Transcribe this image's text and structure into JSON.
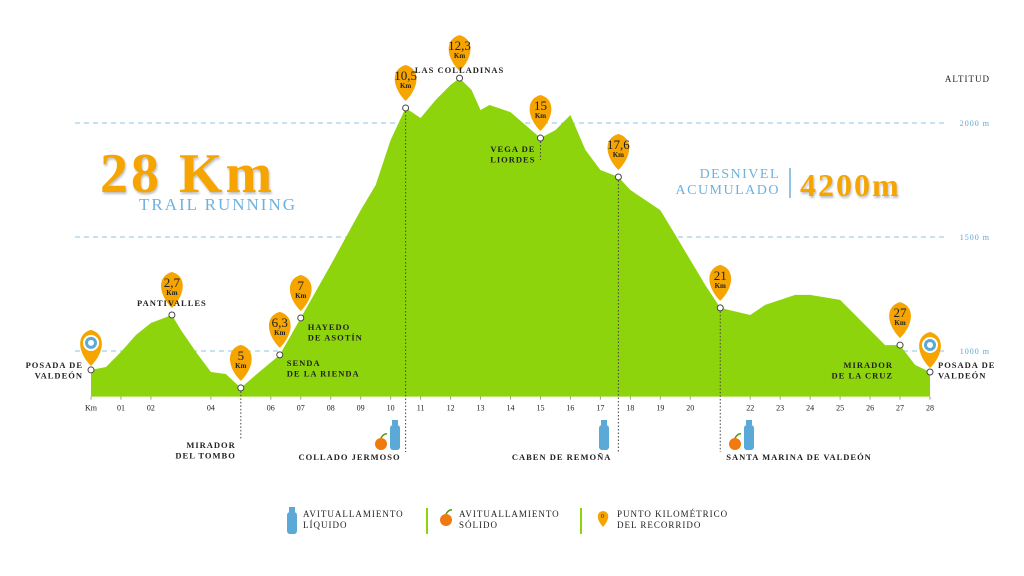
{
  "chart_data": {
    "type": "area",
    "title": "28 Km",
    "subtitle": "TRAIL RUNNING",
    "gain_label": [
      "DESNIVEL",
      "ACUMULADO"
    ],
    "gain_value": "4200m",
    "y_axis_label": "ALTITUD",
    "color": "#8ed40c",
    "x": [
      0,
      0.5,
      1,
      1.5,
      2,
      2.7,
      3,
      3.5,
      4,
      4.5,
      5,
      5.5,
      6.3,
      7,
      8,
      9,
      9.5,
      10,
      10.5,
      11,
      11.5,
      12,
      12.3,
      12.7,
      13,
      13.3,
      14,
      14.5,
      15,
      15.5,
      16,
      16.5,
      17,
      17.6,
      18,
      19,
      19.5,
      20,
      20.5,
      21,
      22,
      22.5,
      23,
      23.5,
      24,
      25,
      26,
      26.5,
      27,
      27.5,
      28
    ],
    "values": [
      917,
      930,
      996,
      1070,
      1123,
      1158,
      1092,
      996,
      908,
      899,
      838,
      895,
      983,
      1145,
      1377,
      1618,
      1728,
      1925,
      2066,
      2022,
      2101,
      2167,
      2197,
      2145,
      2057,
      2079,
      2048,
      1991,
      1934,
      1969,
      2035,
      1882,
      1794,
      1763,
      1706,
      1618,
      1509,
      1399,
      1289,
      1189,
      1158,
      1202,
      1224,
      1246,
      1246,
      1224,
      1092,
      1026,
      1026,
      939,
      908
    ],
    "xlim": [
      0,
      28
    ],
    "ylim": [
      800,
      2450
    ],
    "xticks": [
      {
        "value": 0,
        "label": "Km"
      },
      {
        "value": 1,
        "label": "01"
      },
      {
        "value": 2,
        "label": "02"
      },
      {
        "value": 4,
        "label": "04"
      },
      {
        "value": 6,
        "label": "06"
      },
      {
        "value": 7,
        "label": "07"
      },
      {
        "value": 8,
        "label": "08"
      },
      {
        "value": 9,
        "label": "09"
      },
      10,
      11,
      12,
      13,
      14,
      15,
      16,
      17,
      18,
      19,
      20,
      22,
      23,
      24,
      25,
      26,
      27,
      28
    ],
    "yticks": [
      {
        "value": 1000,
        "label": "1000 m"
      },
      {
        "value": 1500,
        "label": "1500 m"
      },
      {
        "value": 2000,
        "label": "2000 m"
      }
    ],
    "grid": true,
    "pin_unit": "Km",
    "waypoints": [
      {
        "km": 0,
        "alt": 917,
        "name": [
          "POSADA DE",
          "VALDEÓN"
        ]
      },
      {
        "km": 2.7,
        "alt": 1158,
        "label": "2,7",
        "name": [
          "PANTIVALLES"
        ]
      },
      {
        "km": 5,
        "alt": 838,
        "label": "5",
        "name": [
          "MIRADOR",
          "DEL TOMBO"
        ]
      },
      {
        "km": 6.3,
        "alt": 983,
        "label": "6,3",
        "name": [
          "SENDA",
          "DE LA RIENDA"
        ]
      },
      {
        "km": 7,
        "alt": 1145,
        "label": "7",
        "name": [
          "HAYEDO",
          "DE ASOTÍN"
        ]
      },
      {
        "km": 10.5,
        "alt": 2066,
        "label": "10,5",
        "name": [
          "COLLADO JERMOSO"
        ]
      },
      {
        "km": 12.3,
        "alt": 2197,
        "label": "12,3",
        "name": [
          "LAS COLLADINAS"
        ]
      },
      {
        "km": 15,
        "alt": 1934,
        "label": "15",
        "name": [
          "VEGA DE",
          "LIORDES"
        ]
      },
      {
        "km": 17.6,
        "alt": 1763,
        "label": "17,6",
        "name": [
          "CABEN DE REMOÑA"
        ]
      },
      {
        "km": 21,
        "alt": 1189,
        "label": "21",
        "name": [
          "SANTA MARINA DE VALDEÓN"
        ]
      },
      {
        "km": 27,
        "alt": 1026,
        "label": "27",
        "name": [
          "MIRADOR",
          "DE LA CRUZ"
        ]
      },
      {
        "km": 28,
        "alt": 908,
        "name": [
          "POSADA DE",
          "VALDEÓN"
        ]
      }
    ],
    "legend": [
      {
        "name": [
          "AVITUALLAMIENTO",
          "LÍQUIDO"
        ]
      },
      {
        "name": [
          "AVITUALLAMIENTO",
          "SÓLIDO"
        ]
      },
      {
        "name": [
          "PUNTO KILOMÉTRICO",
          "DEL RECORRIDO"
        ]
      }
    ],
    "legend_pin": "0"
  }
}
